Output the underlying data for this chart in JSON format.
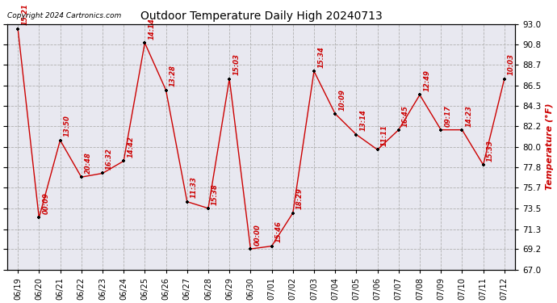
{
  "title": "Outdoor Temperature Daily High 20240713",
  "ylabel": "Temperature (°F)",
  "copyright": "Copyright 2024 Cartronics.com",
  "ylim": [
    67.0,
    93.0
  ],
  "yticks": [
    67.0,
    69.2,
    71.3,
    73.5,
    75.7,
    77.8,
    80.0,
    82.2,
    84.3,
    86.5,
    88.7,
    90.8,
    93.0
  ],
  "dates": [
    "06/19",
    "06/20",
    "06/21",
    "06/22",
    "06/23",
    "06/24",
    "06/25",
    "06/26",
    "06/27",
    "06/28",
    "06/29",
    "06/30",
    "07/01",
    "07/02",
    "07/03",
    "07/04",
    "07/05",
    "07/06",
    "07/07",
    "07/08",
    "07/09",
    "07/10",
    "07/11",
    "07/12"
  ],
  "values": [
    92.5,
    72.5,
    80.7,
    76.8,
    77.2,
    78.5,
    91.0,
    86.0,
    74.2,
    73.5,
    87.2,
    69.2,
    69.5,
    73.0,
    88.0,
    83.5,
    81.3,
    79.7,
    81.8,
    85.5,
    81.8,
    81.8,
    78.1,
    87.2
  ],
  "time_labels": [
    "15:21",
    "00:09",
    "13:50",
    "20:48",
    "16:32",
    "14:42",
    "14:14",
    "13:28",
    "11:33",
    "15:38",
    "15:03",
    "00:00",
    "15:46",
    "18:29",
    "15:34",
    "10:09",
    "13:14",
    "11:11",
    "16:45",
    "12:49",
    "09:17",
    "14:23",
    "15:33",
    "10:03"
  ],
  "line_color": "#cc0000",
  "marker_color": "#000000",
  "label_color": "#cc0000",
  "bg_color": "#ffffff",
  "plot_bg_color": "#e8e8f0",
  "grid_color": "#b0b0b0",
  "title_color": "#000000",
  "copyright_color": "#000000",
  "ylabel_color": "#cc0000",
  "figsize": [
    6.9,
    3.75
  ],
  "dpi": 100
}
